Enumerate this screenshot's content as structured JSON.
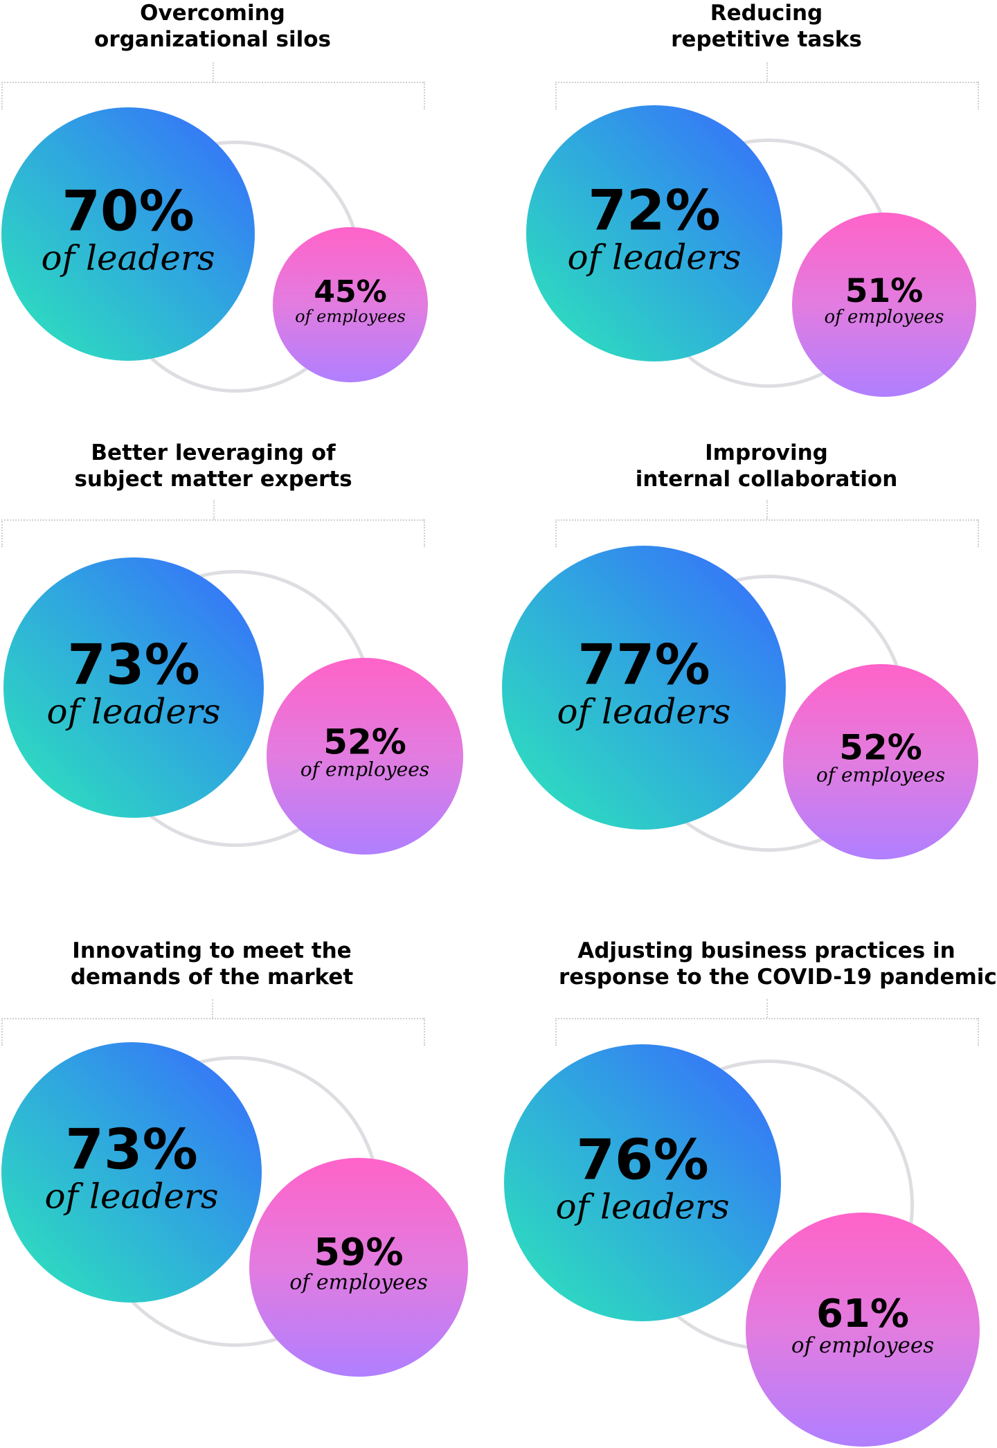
{
  "chart_data": {
    "type": "bubble-comparison",
    "leaders_label": "of leaders",
    "employees_label": "of employees",
    "panels": [
      {
        "title_lines": [
          "Overcoming",
          "organizational silos"
        ],
        "leaders": "70%",
        "employees": "45%",
        "leaders_value": 70,
        "employees_value": 45
      },
      {
        "title_lines": [
          "Reducing",
          "repetitive tasks"
        ],
        "leaders": "72%",
        "employees": "51%",
        "leaders_value": 72,
        "employees_value": 51
      },
      {
        "title_lines": [
          "Better leveraging of",
          "subject matter experts"
        ],
        "leaders": "73%",
        "employees": "52%",
        "leaders_value": 73,
        "employees_value": 52
      },
      {
        "title_lines": [
          "Improving",
          "internal collaboration"
        ],
        "leaders": "77%",
        "employees": "52%",
        "leaders_value": 77,
        "employees_value": 52
      },
      {
        "title_lines": [
          "Innovating to meet the",
          "demands of the market"
        ],
        "leaders": "73%",
        "employees": "59%",
        "leaders_value": 73,
        "employees_value": 59
      },
      {
        "title_lines": [
          "Adjusting business practices in",
          "response to the COVID-19 pandemic"
        ],
        "leaders": "76%",
        "employees": "61%",
        "leaders_value": 76,
        "employees_value": 61
      }
    ],
    "colors": {
      "leaders_gradient": [
        "#3868ff",
        "#2fa5e0",
        "#2ee8b8"
      ],
      "employees_gradient": [
        "#ff63c8",
        "#e27ce0",
        "#b07fff"
      ],
      "ring": "#dedee2"
    }
  }
}
